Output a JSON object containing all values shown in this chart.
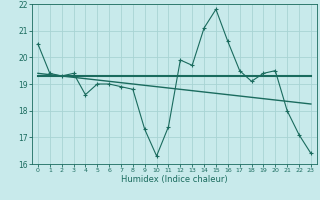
{
  "xlabel": "Humidex (Indice chaleur)",
  "background_color": "#c8eaeb",
  "grid_color": "#a8d4d4",
  "line_color": "#1a6b5e",
  "x_values": [
    0,
    1,
    2,
    3,
    4,
    5,
    6,
    7,
    8,
    9,
    10,
    11,
    12,
    13,
    14,
    15,
    16,
    17,
    18,
    19,
    20,
    21,
    22,
    23
  ],
  "line1_y": [
    20.5,
    19.4,
    19.3,
    19.4,
    18.6,
    19.0,
    19.0,
    18.9,
    18.8,
    17.3,
    16.3,
    17.4,
    19.9,
    19.7,
    21.1,
    21.8,
    20.6,
    19.5,
    19.1,
    19.4,
    19.5,
    18.0,
    17.1,
    16.4
  ],
  "line2_y": [
    19.4,
    19.35,
    19.3,
    19.25,
    19.2,
    19.15,
    19.1,
    19.05,
    19.0,
    18.95,
    18.9,
    18.85,
    18.8,
    18.75,
    18.7,
    18.65,
    18.6,
    18.55,
    18.5,
    18.45,
    18.4,
    18.35,
    18.3,
    18.25
  ],
  "line3_y": [
    19.3,
    19.3,
    19.3,
    19.3,
    19.3,
    19.3,
    19.3,
    19.3,
    19.3,
    19.3,
    19.3,
    19.3,
    19.3,
    19.3,
    19.3,
    19.3,
    19.3,
    19.3,
    19.3,
    19.3,
    19.3,
    19.3,
    19.3,
    19.3
  ],
  "ylim": [
    16,
    22
  ],
  "xlim": [
    -0.5,
    23.5
  ],
  "yticks": [
    16,
    17,
    18,
    19,
    20,
    21,
    22
  ],
  "xticks": [
    0,
    1,
    2,
    3,
    4,
    5,
    6,
    7,
    8,
    9,
    10,
    11,
    12,
    13,
    14,
    15,
    16,
    17,
    18,
    19,
    20,
    21,
    22,
    23
  ]
}
